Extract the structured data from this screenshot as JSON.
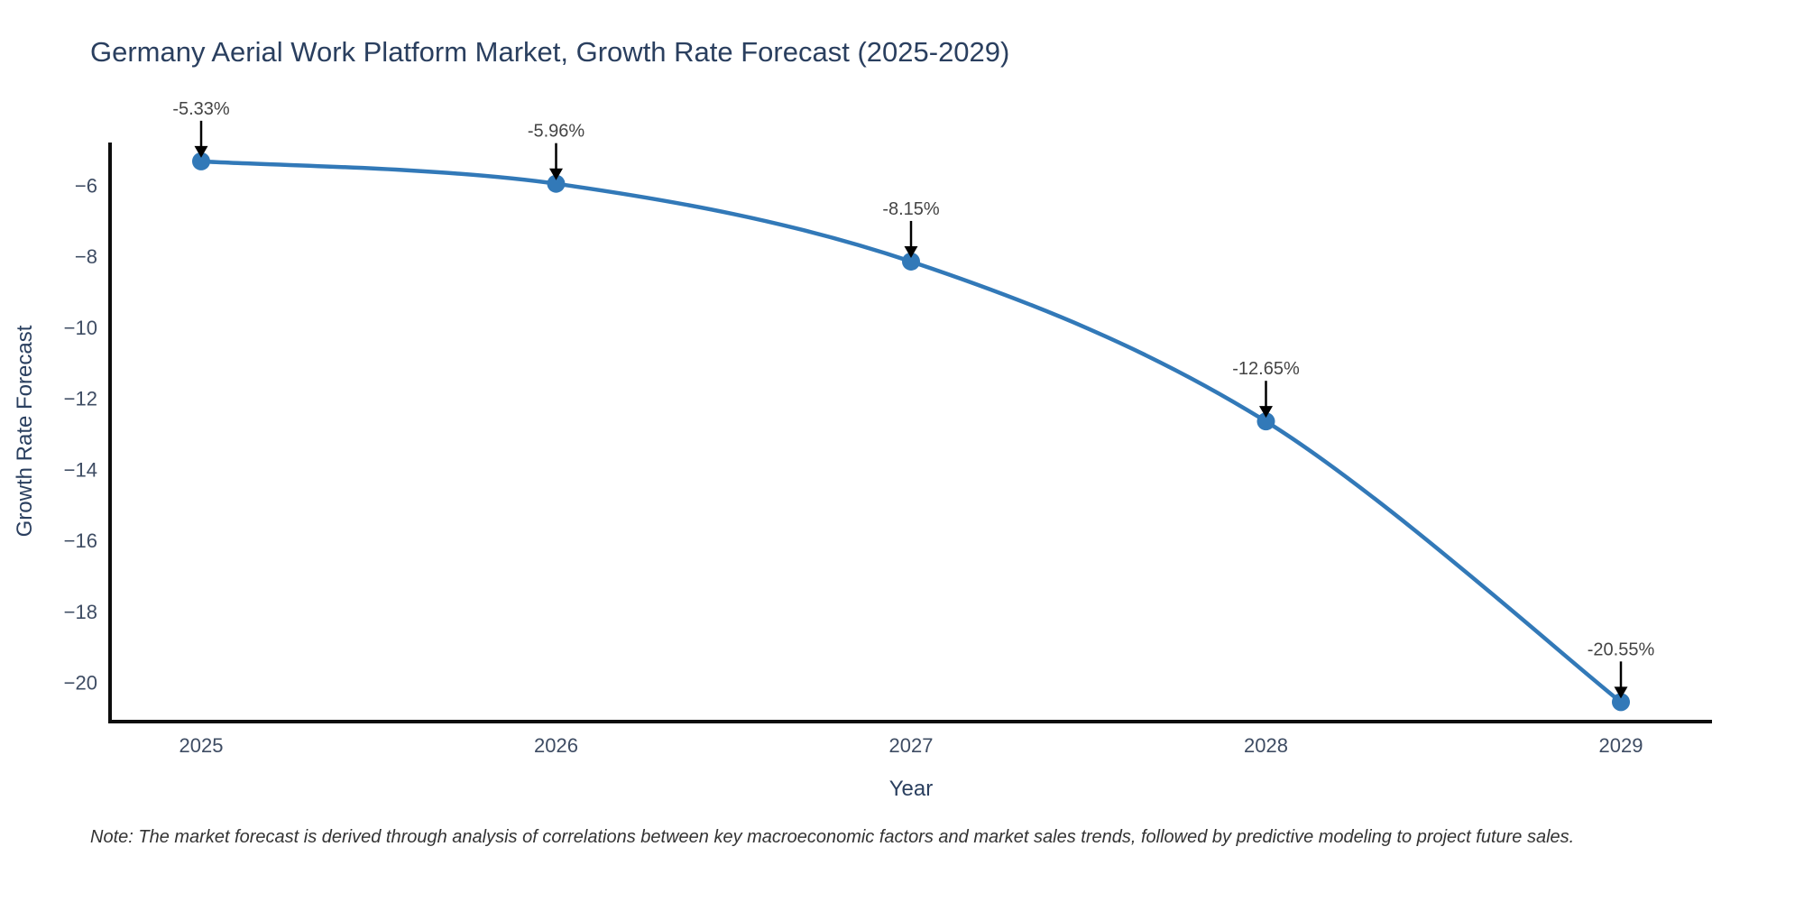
{
  "chart_data": {
    "type": "line",
    "title": "Germany Aerial Work Platform Market, Growth Rate Forecast (2025-2029)",
    "xlabel": "Year",
    "ylabel": "Growth Rate Forecast",
    "note": "Note: The market forecast is derived through analysis of correlations between key macroeconomic factors and market sales trends, followed by predictive modeling to project future sales.",
    "categories": [
      2025,
      2026,
      2027,
      2028,
      2029
    ],
    "x_tick_labels": [
      "2025",
      "2026",
      "2027",
      "2028",
      "2029"
    ],
    "values": [
      -5.33,
      -5.96,
      -8.15,
      -12.65,
      -20.55
    ],
    "point_labels": [
      "-5.33%",
      "-5.96%",
      "-8.15%",
      "-12.65%",
      "-20.55%"
    ],
    "y_ticks": [
      -6,
      -8,
      -10,
      -12,
      -14,
      -16,
      -18,
      -20
    ],
    "y_tick_labels": [
      "−6",
      "−8",
      "−10",
      "−12",
      "−14",
      "−16",
      "−18",
      "−20"
    ],
    "ylim": [
      -21.1,
      -4.8
    ],
    "line_shape": "spline",
    "grid": false,
    "legend": "none",
    "colors": {
      "line": "#3279b8",
      "marker": "#3279b8",
      "annotation_arrow": "#000000",
      "annotation_text": "#444444",
      "tick_text": "#3e4c63",
      "title_text": "#2a3f5f",
      "axis_title_text": "#2a3f5f",
      "axis_line": "#0d0d0d",
      "note_text": "#333333",
      "background": "#ffffff"
    }
  }
}
